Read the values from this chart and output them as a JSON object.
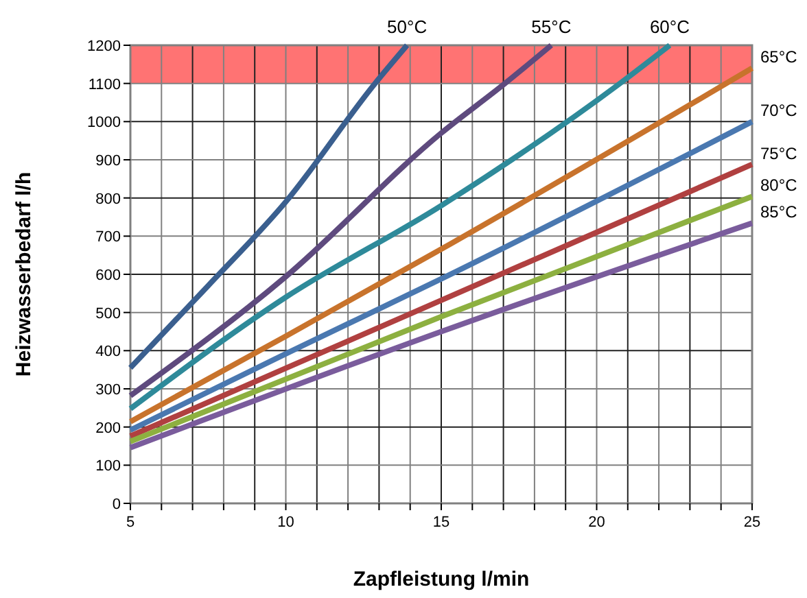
{
  "chart_data": {
    "type": "line",
    "xlabel": "Zapfleistung l/min",
    "ylabel": "Heizwasserbedarf l/h",
    "xlim": [
      5,
      25
    ],
    "ylim": [
      0,
      1200
    ],
    "xticks": [
      5,
      {
        "value": 6,
        "label": null
      },
      {
        "value": 7,
        "label": null
      },
      {
        "value": 8,
        "label": null
      },
      {
        "value": 9,
        "label": null
      },
      10,
      {
        "value": 11,
        "label": null
      },
      {
        "value": 12,
        "label": null
      },
      {
        "value": 13,
        "label": null
      },
      {
        "value": 14,
        "label": null
      },
      15,
      {
        "value": 16,
        "label": null
      },
      {
        "value": 17,
        "label": null
      },
      {
        "value": 18,
        "label": null
      },
      {
        "value": 19,
        "label": null
      },
      20,
      {
        "value": 21,
        "label": null
      },
      {
        "value": 22,
        "label": null
      },
      {
        "value": 23,
        "label": null
      },
      {
        "value": 24,
        "label": null
      },
      25
    ],
    "yticks": [
      0,
      100,
      200,
      300,
      400,
      500,
      600,
      700,
      800,
      900,
      1000,
      1100,
      1200
    ],
    "grid": true,
    "marker": "none",
    "line_style": "solid",
    "bands": [
      {
        "axis": "y",
        "from": 1100,
        "to": 1200,
        "color": "#ff6b6b"
      }
    ],
    "series": [
      {
        "name": "50°C",
        "color": "#3a5f8f",
        "x": [
          5,
          7.5,
          10,
          12.87,
          13.9
        ],
        "values": [
          355,
          570,
          790,
          1100,
          1200
        ]
      },
      {
        "name": "55°C",
        "color": "#5e4a7e",
        "x": [
          5,
          10,
          15,
          17.05,
          18.54
        ],
        "values": [
          282,
          594,
          970,
          1100,
          1200
        ]
      },
      {
        "name": "60°C",
        "color": "#2e8a9a",
        "x": [
          5,
          10,
          15,
          20.75,
          22.35
        ],
        "values": [
          248,
          540,
          780,
          1100,
          1200
        ]
      },
      {
        "name": "65°C",
        "color": "#c8732c",
        "x": [
          5,
          10,
          15,
          25
        ],
        "values": [
          214,
          438,
          666,
          1140
        ]
      },
      {
        "name": "70°C",
        "color": "#4a78b0",
        "x": [
          5,
          10,
          15,
          25
        ],
        "values": [
          192,
          392,
          588,
          1000
        ]
      },
      {
        "name": "75°C",
        "color": "#b04040",
        "x": [
          5,
          15,
          25
        ],
        "values": [
          176,
          532,
          888
        ]
      },
      {
        "name": "80°C",
        "color": "#8db040",
        "x": [
          5,
          15,
          25
        ],
        "values": [
          162,
          489,
          804
        ]
      },
      {
        "name": "85°C",
        "color": "#7a5c9c",
        "x": [
          5,
          15,
          25
        ],
        "values": [
          146,
          450,
          734
        ]
      }
    ]
  }
}
